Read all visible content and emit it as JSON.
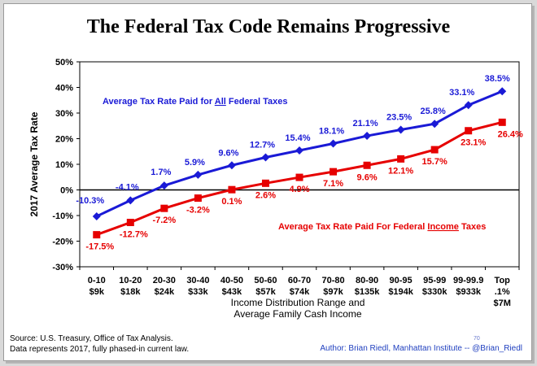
{
  "title": "The Federal Tax Code Remains Progressive",
  "source_line1": "Source: U.S. Treasury, Office of Tax Analysis.",
  "source_line2": "Data represents 2017, fully phased-in current law.",
  "author": "Author: Brian Riedl, Manhattan Institute -- @Brian_Riedl",
  "page_number": "70",
  "colors": {
    "all_taxes": "#1a1ad6",
    "income_taxes": "#e60000"
  },
  "chart_data": {
    "type": "line",
    "title": "The Federal Tax Code Remains Progressive",
    "ylabel": "2017 Average Tax Rate",
    "xlabel_line1": "Income Distribution Range and",
    "xlabel_line2": "Average Family Cash Income",
    "ylim": [
      -30,
      50
    ],
    "yticks": [
      -30,
      -20,
      -10,
      0,
      10,
      20,
      30,
      40,
      50
    ],
    "ytick_labels": [
      "-30%",
      "-20%",
      "-10%",
      "0%",
      "10%",
      "20%",
      "30%",
      "40%",
      "50%"
    ],
    "grid": false,
    "categories": [
      [
        "0-10",
        "$9k"
      ],
      [
        "10-20",
        "$18k"
      ],
      [
        "20-30",
        "$24k"
      ],
      [
        "30-40",
        "$33k"
      ],
      [
        "40-50",
        "$43k"
      ],
      [
        "50-60",
        "$57k"
      ],
      [
        "60-70",
        "$74k"
      ],
      [
        "70-80",
        "$97k"
      ],
      [
        "80-90",
        "$135k"
      ],
      [
        "90-95",
        "$194k"
      ],
      [
        "95-99",
        "$330k"
      ],
      [
        "99-99.9",
        "$933k"
      ],
      [
        "Top",
        ".1%",
        "$7M"
      ]
    ],
    "series": [
      {
        "name": "Average Tax Rate Paid for All Federal Taxes",
        "legend_prefix": "Average Tax Rate Paid for ",
        "legend_underline": "All",
        "legend_suffix": " Federal Taxes",
        "marker": "diamond",
        "values": [
          -10.3,
          -4.1,
          1.7,
          5.9,
          9.6,
          12.7,
          15.4,
          18.1,
          21.1,
          23.5,
          25.8,
          33.1,
          38.5
        ],
        "labels": [
          "-10.3%",
          "-4.1%",
          "1.7%",
          "5.9%",
          "9.6%",
          "12.7%",
          "15.4%",
          "18.1%",
          "21.1%",
          "23.5%",
          "25.8%",
          "33.1%",
          "38.5%"
        ]
      },
      {
        "name": "Average Tax Rate Paid For Federal Income Taxes",
        "legend_prefix": "Average Tax Rate Paid For Federal ",
        "legend_underline": "Income",
        "legend_suffix": " Taxes",
        "marker": "square",
        "values": [
          -17.5,
          -12.7,
          -7.2,
          -3.2,
          0.1,
          2.6,
          4.9,
          7.1,
          9.6,
          12.1,
          15.7,
          23.1,
          26.4
        ],
        "labels": [
          "-17.5%",
          "-12.7%",
          "-7.2%",
          "-3.2%",
          "0.1%",
          "2.6%",
          "4.9%",
          "7.1%",
          "9.6%",
          "12.1%",
          "15.7%",
          "23.1%",
          "26.4%"
        ]
      }
    ]
  }
}
